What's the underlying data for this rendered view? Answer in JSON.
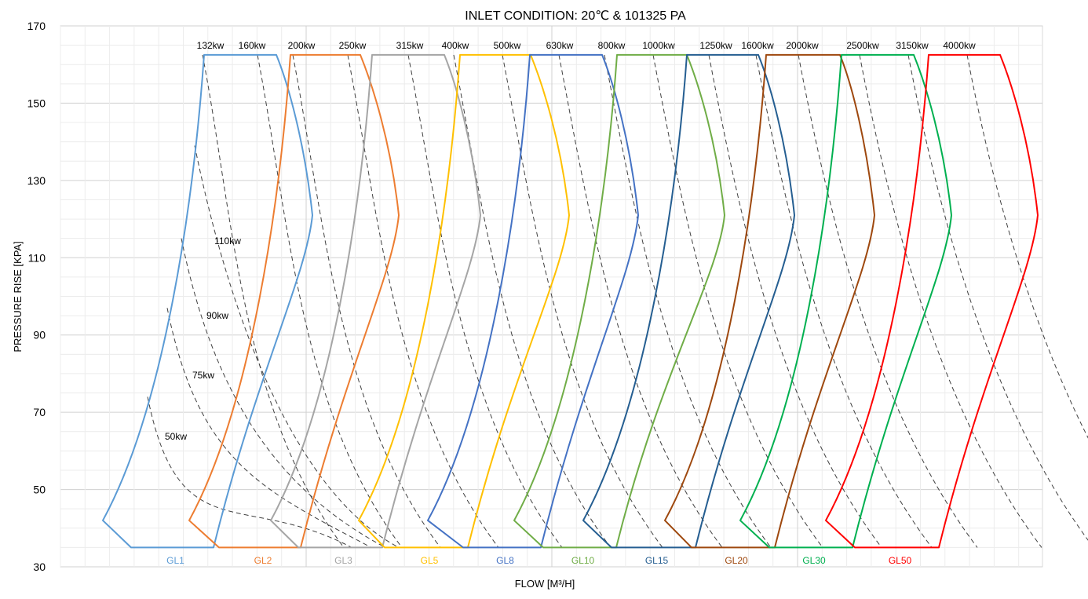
{
  "chart_data": {
    "type": "line",
    "title": "INLET CONDITION: 20℃ & 101325 PA",
    "xlabel": "FLOW [M³/H]",
    "ylabel": "PRESSURE RISE [KPA]",
    "ylim": [
      30,
      170
    ],
    "yticks": [
      30,
      50,
      70,
      90,
      110,
      130,
      150,
      170
    ],
    "grid": true,
    "series": [
      {
        "name": "GL1",
        "color": "#5B9BD5",
        "x_left_low": 0.0
      },
      {
        "name": "GL2",
        "color": "#ED7D31",
        "x_left_low": 0.0
      },
      {
        "name": "GL3",
        "color": "#A5A5A5",
        "x_left_low": 0.0
      },
      {
        "name": "GL5",
        "color": "#FFC000",
        "x_left_low": 0.0
      },
      {
        "name": "GL8",
        "color": "#4472C4",
        "x_left_low": 0.0
      },
      {
        "name": "GL10",
        "color": "#70AD47",
        "x_left_low": 0.0
      },
      {
        "name": "GL15",
        "color": "#255E91",
        "x_left_low": 0.0
      },
      {
        "name": "GL20",
        "color": "#9E480E",
        "x_left_low": 0.0
      },
      {
        "name": "GL30",
        "color": "#00B050",
        "x_left_low": 0.0
      },
      {
        "name": "GL50",
        "color": "#FF0000",
        "x_left_low": 0.0
      }
    ],
    "power_lines_top": [
      "132kw",
      "160kw",
      "200kw",
      "250kw",
      "315kw",
      "400kw",
      "500kw",
      "630kw",
      "800kw",
      "1000kw",
      "1250kw",
      "1600kw",
      "2000kw",
      "2500kw",
      "3150kw",
      "4000kw"
    ],
    "power_lines_left": [
      "110kw",
      "90kw",
      "75kw",
      "50kw"
    ]
  }
}
